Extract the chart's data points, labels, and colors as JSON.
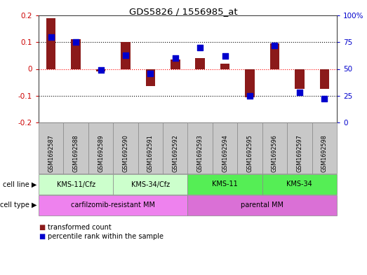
{
  "title": "GDS5826 / 1556985_at",
  "samples": [
    "GSM1692587",
    "GSM1692588",
    "GSM1692589",
    "GSM1692590",
    "GSM1692591",
    "GSM1692592",
    "GSM1692593",
    "GSM1692594",
    "GSM1692595",
    "GSM1692596",
    "GSM1692597",
    "GSM1692598"
  ],
  "transformed_count": [
    0.19,
    0.11,
    -0.008,
    0.1,
    -0.065,
    0.035,
    0.04,
    0.02,
    -0.105,
    0.095,
    -0.075,
    -0.075
  ],
  "percentile_rank": [
    80,
    75,
    49,
    63,
    46,
    60,
    70,
    62,
    25,
    72,
    28,
    22
  ],
  "ylim": [
    -0.2,
    0.2
  ],
  "y2lim": [
    0,
    100
  ],
  "yticks": [
    -0.2,
    -0.1,
    0.0,
    0.1,
    0.2
  ],
  "y2ticks": [
    0,
    25,
    50,
    75,
    100
  ],
  "y2ticklabels": [
    "0",
    "25",
    "50",
    "75",
    "100%"
  ],
  "bar_color": "#8B1A1A",
  "dot_color": "#0000CD",
  "cell_lines": [
    {
      "label": "KMS-11/Cfz",
      "start": 0,
      "end": 2,
      "color": "#CCFFCC"
    },
    {
      "label": "KMS-34/Cfz",
      "start": 3,
      "end": 5,
      "color": "#CCFFCC"
    },
    {
      "label": "KMS-11",
      "start": 6,
      "end": 8,
      "color": "#66EE66"
    },
    {
      "label": "KMS-34",
      "start": 9,
      "end": 11,
      "color": "#66EE66"
    }
  ],
  "cell_types": [
    {
      "label": "carfilzomib-resistant MM",
      "start": 0,
      "end": 5,
      "color": "#EE82EE"
    },
    {
      "label": "parental MM",
      "start": 6,
      "end": 11,
      "color": "#DA70D6"
    }
  ],
  "legend_items": [
    {
      "label": "transformed count",
      "color": "#8B1A1A"
    },
    {
      "label": "percentile rank within the sample",
      "color": "#0000CD"
    }
  ],
  "zero_line_color": "#FF0000",
  "background_color": "#FFFFFF",
  "tick_color_left": "#CC0000",
  "tick_color_right": "#0000CC"
}
